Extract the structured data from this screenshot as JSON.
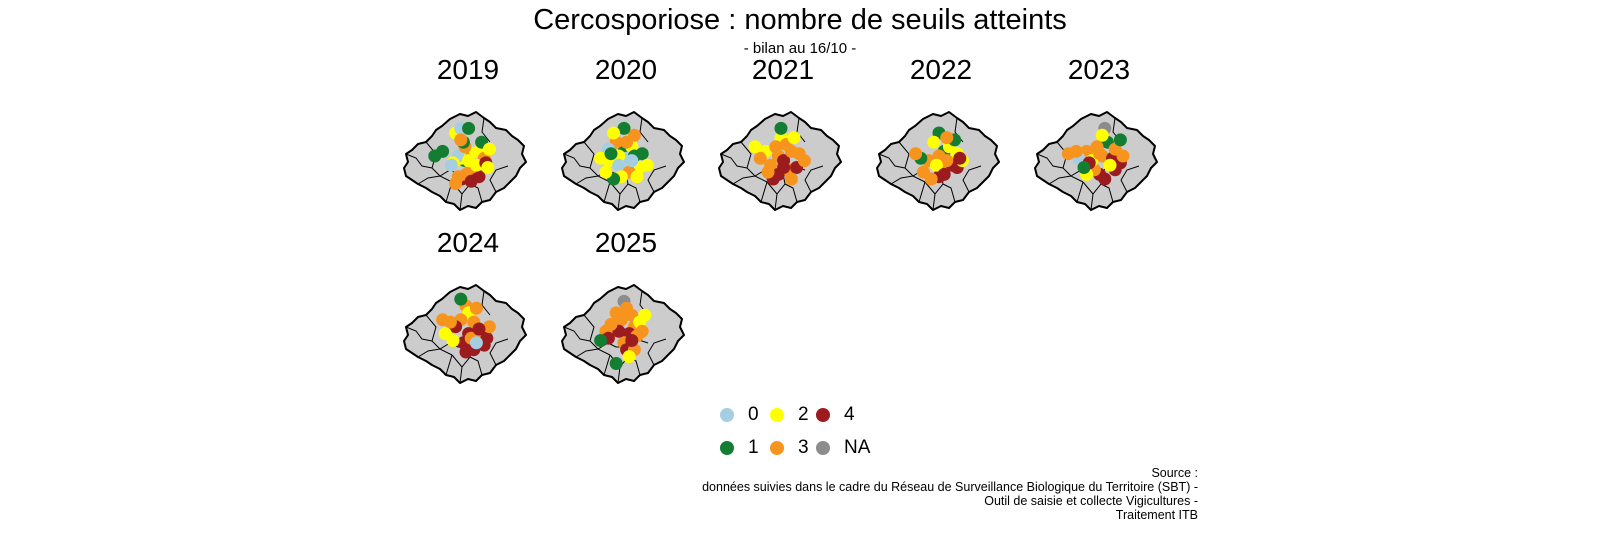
{
  "title": "Cercosporiose : nombre de seuils atteints",
  "subtitle": "- bilan au 16/10 -",
  "panels": [
    {
      "year": "2019",
      "points": [
        [
          0,
          0.03,
          0.02
        ],
        [
          1,
          0.0,
          -0.05
        ],
        [
          1,
          0.06,
          0.05
        ],
        [
          2,
          0.1,
          -0.05
        ],
        [
          3,
          -0.05,
          0.0
        ],
        [
          1,
          -0.02,
          0.1
        ],
        [
          2,
          -0.1,
          0.05
        ],
        [
          0,
          -0.15,
          0.0
        ],
        [
          1,
          -0.45,
          -0.1
        ],
        [
          2,
          -0.25,
          0.15
        ],
        [
          3,
          -0.02,
          -0.2
        ],
        [
          2,
          0.25,
          -0.1
        ],
        [
          3,
          0.35,
          0.05
        ],
        [
          4,
          0.15,
          0.35
        ],
        [
          4,
          -0.08,
          0.5
        ],
        [
          3,
          -0.15,
          0.45
        ],
        [
          4,
          0.25,
          0.45
        ],
        [
          3,
          0.1,
          0.25
        ],
        [
          2,
          0.2,
          0.2
        ],
        [
          1,
          -0.05,
          -0.3
        ],
        [
          2,
          -0.2,
          -0.5
        ],
        [
          0,
          -0.1,
          -0.6
        ],
        [
          1,
          0.05,
          -0.6
        ],
        [
          3,
          -0.1,
          -0.35
        ],
        [
          4,
          0.38,
          0.15
        ],
        [
          2,
          0.42,
          0.25
        ],
        [
          3,
          0.0,
          0.4
        ],
        [
          1,
          0.3,
          -0.3
        ],
        [
          2,
          0.45,
          -0.15
        ],
        [
          0,
          -0.28,
          0.2
        ],
        [
          4,
          0.1,
          0.55
        ],
        [
          3,
          -0.2,
          0.6
        ],
        [
          2,
          0.05,
          0.1
        ],
        [
          1,
          -0.6,
          0.0
        ]
      ]
    },
    {
      "year": "2020",
      "points": [
        [
          1,
          0.0,
          -0.1
        ],
        [
          2,
          0.15,
          -0.2
        ],
        [
          0,
          0.05,
          0.05
        ],
        [
          1,
          0.2,
          0.0
        ],
        [
          2,
          -0.1,
          0.0
        ],
        [
          3,
          -0.15,
          -0.3
        ],
        [
          2,
          -0.3,
          0.1
        ],
        [
          0,
          -0.1,
          0.2
        ],
        [
          2,
          0.3,
          0.25
        ],
        [
          3,
          0.1,
          0.35
        ],
        [
          2,
          -0.05,
          0.45
        ],
        [
          1,
          0.35,
          -0.05
        ],
        [
          2,
          0.45,
          0.2
        ],
        [
          3,
          0.2,
          -0.45
        ],
        [
          1,
          0.0,
          -0.6
        ],
        [
          2,
          -0.2,
          -0.5
        ],
        [
          0,
          -0.3,
          -0.15
        ],
        [
          2,
          -0.45,
          0.05
        ],
        [
          3,
          0.05,
          -0.3
        ],
        [
          2,
          0.25,
          0.45
        ],
        [
          1,
          -0.2,
          0.5
        ],
        [
          2,
          -0.35,
          0.35
        ],
        [
          0,
          0.15,
          0.1
        ],
        [
          1,
          -0.25,
          -0.05
        ]
      ]
    },
    {
      "year": "2021",
      "points": [
        [
          3,
          -0.05,
          0.0
        ],
        [
          4,
          0.05,
          0.1
        ],
        [
          3,
          0.2,
          -0.1
        ],
        [
          2,
          0.0,
          -0.4
        ],
        [
          3,
          -0.2,
          0.2
        ],
        [
          4,
          -0.05,
          0.4
        ],
        [
          3,
          0.15,
          0.3
        ],
        [
          4,
          -0.15,
          0.5
        ],
        [
          2,
          -0.3,
          -0.1
        ],
        [
          3,
          -0.4,
          0.05
        ],
        [
          3,
          0.35,
          -0.05
        ],
        [
          4,
          0.3,
          0.25
        ],
        [
          3,
          0.45,
          0.1
        ],
        [
          1,
          0.0,
          -0.6
        ],
        [
          3,
          0.1,
          -0.25
        ],
        [
          2,
          0.25,
          -0.4
        ],
        [
          3,
          -0.25,
          0.35
        ],
        [
          4,
          0.05,
          0.25
        ],
        [
          3,
          0.2,
          0.5
        ],
        [
          2,
          -0.5,
          -0.2
        ],
        [
          3,
          -0.1,
          -0.2
        ]
      ]
    },
    {
      "year": "2022",
      "points": [
        [
          1,
          0.0,
          -0.5
        ],
        [
          2,
          -0.1,
          -0.3
        ],
        [
          1,
          0.1,
          -0.1
        ],
        [
          3,
          0.0,
          0.0
        ],
        [
          2,
          0.2,
          -0.2
        ],
        [
          3,
          -0.2,
          0.1
        ],
        [
          4,
          0.25,
          0.2
        ],
        [
          3,
          0.05,
          0.35
        ],
        [
          4,
          0.0,
          0.45
        ],
        [
          4,
          0.35,
          0.25
        ],
        [
          3,
          -0.15,
          0.5
        ],
        [
          2,
          0.35,
          -0.05
        ],
        [
          1,
          -0.35,
          0.05
        ],
        [
          3,
          -0.45,
          -0.05
        ],
        [
          2,
          0.45,
          0.1
        ],
        [
          3,
          0.15,
          0.1
        ],
        [
          2,
          -0.05,
          0.2
        ],
        [
          4,
          0.1,
          0.4
        ],
        [
          3,
          -0.3,
          0.35
        ],
        [
          1,
          0.3,
          -0.35
        ],
        [
          3,
          0.15,
          -0.4
        ],
        [
          4,
          0.4,
          0.05
        ]
      ]
    },
    {
      "year": "2023",
      "points": [
        [
          5,
          0.15,
          -0.6
        ],
        [
          1,
          0.2,
          -0.3
        ],
        [
          2,
          0.1,
          -0.45
        ],
        [
          3,
          0.0,
          -0.2
        ],
        [
          3,
          -0.2,
          -0.1
        ],
        [
          3,
          0.1,
          0.0
        ],
        [
          4,
          0.3,
          0.05
        ],
        [
          4,
          0.45,
          0.15
        ],
        [
          4,
          0.35,
          0.3
        ],
        [
          3,
          0.5,
          0.0
        ],
        [
          4,
          0.05,
          0.4
        ],
        [
          4,
          0.15,
          0.5
        ],
        [
          3,
          -0.05,
          0.3
        ],
        [
          2,
          -0.1,
          0.1
        ],
        [
          0,
          -0.35,
          0.05
        ],
        [
          3,
          -0.4,
          -0.1
        ],
        [
          3,
          -0.55,
          -0.05
        ],
        [
          4,
          -0.15,
          0.15
        ],
        [
          2,
          0.25,
          0.2
        ],
        [
          3,
          0.35,
          -0.15
        ],
        [
          1,
          0.45,
          -0.35
        ],
        [
          2,
          -0.2,
          0.4
        ],
        [
          3,
          0.05,
          -0.05
        ],
        [
          1,
          -0.25,
          0.25
        ]
      ]
    },
    {
      "year": "2024",
      "points": [
        [
          3,
          0.0,
          -0.5
        ],
        [
          2,
          0.05,
          -0.35
        ],
        [
          3,
          -0.1,
          -0.2
        ],
        [
          4,
          -0.2,
          -0.05
        ],
        [
          3,
          0.15,
          -0.15
        ],
        [
          4,
          0.05,
          0.1
        ],
        [
          4,
          -0.05,
          0.3
        ],
        [
          4,
          0.0,
          0.5
        ],
        [
          4,
          0.15,
          0.45
        ],
        [
          3,
          0.3,
          0.1
        ],
        [
          4,
          0.4,
          0.2
        ],
        [
          4,
          0.35,
          0.35
        ],
        [
          3,
          -0.3,
          -0.15
        ],
        [
          2,
          -0.4,
          0.1
        ],
        [
          3,
          0.45,
          -0.05
        ],
        [
          1,
          -0.1,
          -0.65
        ],
        [
          3,
          0.2,
          -0.45
        ],
        [
          2,
          -0.25,
          0.25
        ],
        [
          3,
          0.1,
          0.2
        ],
        [
          0,
          0.2,
          0.3
        ],
        [
          3,
          -0.45,
          -0.2
        ],
        [
          4,
          0.25,
          0.0
        ]
      ]
    },
    {
      "year": "2025",
      "points": [
        [
          5,
          0.0,
          -0.6
        ],
        [
          3,
          0.05,
          -0.45
        ],
        [
          3,
          0.15,
          -0.3
        ],
        [
          3,
          -0.05,
          -0.2
        ],
        [
          3,
          0.2,
          -0.05
        ],
        [
          4,
          0.1,
          0.1
        ],
        [
          3,
          0.25,
          0.15
        ],
        [
          3,
          0.0,
          0.3
        ],
        [
          4,
          -0.1,
          0.05
        ],
        [
          3,
          -0.25,
          -0.1
        ],
        [
          3,
          -0.35,
          0.05
        ],
        [
          2,
          0.3,
          -0.15
        ],
        [
          4,
          0.05,
          0.45
        ],
        [
          3,
          0.2,
          0.45
        ],
        [
          4,
          -0.3,
          0.2
        ],
        [
          1,
          -0.45,
          0.25
        ],
        [
          3,
          0.35,
          0.05
        ],
        [
          2,
          0.1,
          0.6
        ],
        [
          1,
          -0.15,
          0.75
        ],
        [
          3,
          -0.15,
          -0.35
        ],
        [
          2,
          0.4,
          -0.3
        ],
        [
          4,
          0.15,
          0.25
        ]
      ]
    }
  ],
  "legend": [
    {
      "label": "0",
      "color": "#a6cee3"
    },
    {
      "label": "1",
      "color": "#137d32"
    },
    {
      "label": "2",
      "color": "#ffff00"
    },
    {
      "label": "3",
      "color": "#f7941d"
    },
    {
      "label": "4",
      "color": "#9b1b1f"
    },
    {
      "label": "NA",
      "color": "#8c8c8c"
    }
  ],
  "source": {
    "line1": "Source :",
    "line2": "données suivies dans le cadre du Réseau de Surveillance Biologique du Territoire (SBT) -",
    "line3": "Outil de saisie et collecte Vigicultures -",
    "line4": "Traitement ITB"
  }
}
